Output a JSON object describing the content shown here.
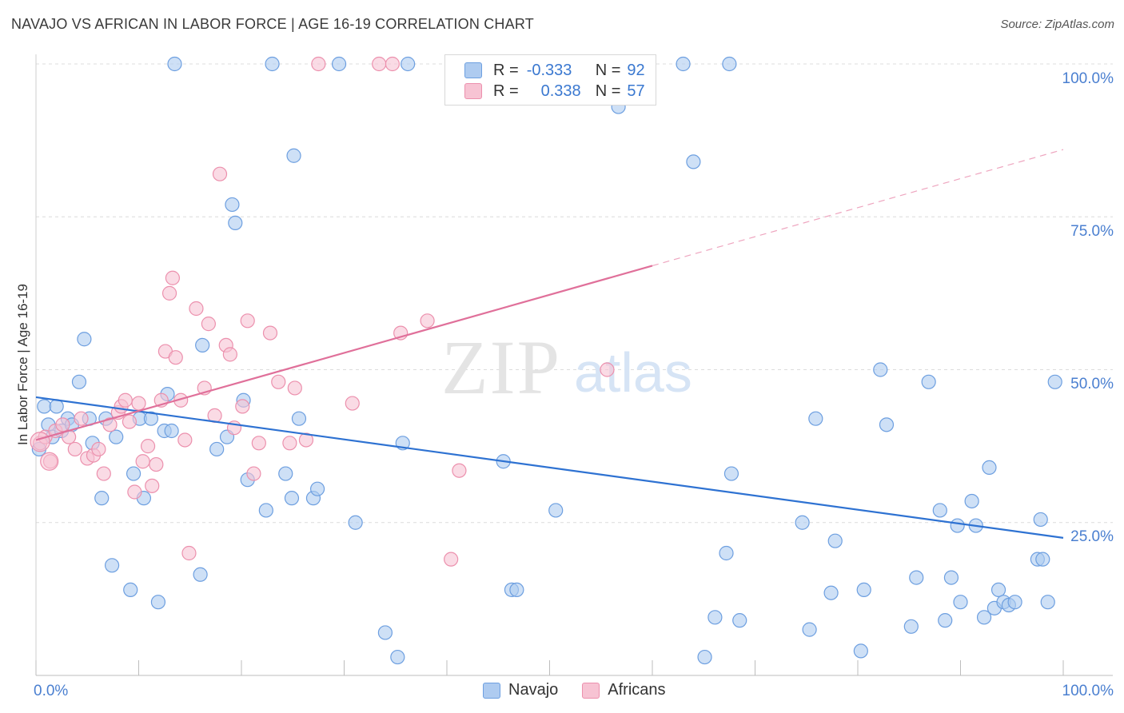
{
  "header": {
    "title": "NAVAJO VS AFRICAN IN LABOR FORCE | AGE 16-19 CORRELATION CHART",
    "source": "Source: ZipAtlas.com"
  },
  "watermark": {
    "zip": "ZIP",
    "atlas": "atlas"
  },
  "legend": {
    "rows": [
      {
        "r_label": "R =",
        "r_value": "-0.333",
        "n_label": "N =",
        "n_value": "92",
        "color": "#aecbf0",
        "stroke": "#6d9fe0"
      },
      {
        "r_label": "R =",
        "r_value": "0.338",
        "n_label": "N =",
        "n_value": "57",
        "color": "#f7c3d3",
        "stroke": "#ec90ad"
      }
    ]
  },
  "bottom_legend": {
    "navajo": "Navajo",
    "africans": "Africans"
  },
  "chart_data": {
    "type": "scatter",
    "title": "NAVAJO VS AFRICAN IN LABOR FORCE | AGE 16-19 CORRELATION CHART",
    "ylabel": "In Labor Force | Age 16-19",
    "xlabel": "",
    "xlim": [
      0,
      100
    ],
    "ylim": [
      0,
      100
    ],
    "x_tick_labels": [
      "0.0%",
      "100.0%"
    ],
    "y_tick_labels": [
      "100.0%",
      "75.0%",
      "50.0%",
      "25.0%"
    ],
    "y_ticks": [
      100,
      75,
      50,
      25
    ],
    "grid": true,
    "legend_position": "top-center",
    "series": [
      {
        "name": "Navajo",
        "color": "#6d9fe0",
        "fill": "#aecbf0",
        "r": -0.333,
        "n": 92,
        "trend": {
          "x0": 0,
          "y0": 45.5,
          "x1": 100,
          "y1": 22.5,
          "style": "solid"
        },
        "points": [
          [
            0.3,
            37
          ],
          [
            0.8,
            44
          ],
          [
            1.2,
            41
          ],
          [
            1.6,
            39
          ],
          [
            2,
            44
          ],
          [
            2.5,
            40
          ],
          [
            3.1,
            42
          ],
          [
            3.5,
            41
          ],
          [
            4.2,
            48
          ],
          [
            4.7,
            55
          ],
          [
            5.2,
            42
          ],
          [
            5.5,
            38
          ],
          [
            6.4,
            29
          ],
          [
            6.8,
            42
          ],
          [
            7.4,
            18
          ],
          [
            7.8,
            39
          ],
          [
            9.2,
            14
          ],
          [
            9.5,
            33
          ],
          [
            10.1,
            42
          ],
          [
            10.5,
            29
          ],
          [
            11.2,
            42
          ],
          [
            11.9,
            12
          ],
          [
            12.5,
            40
          ],
          [
            12.8,
            46
          ],
          [
            13.2,
            40
          ],
          [
            16,
            16.5
          ],
          [
            16.2,
            54
          ],
          [
            17.6,
            37
          ],
          [
            18.6,
            39
          ],
          [
            19.1,
            77
          ],
          [
            19.4,
            74
          ],
          [
            20.2,
            45
          ],
          [
            20.6,
            32
          ],
          [
            22.4,
            27
          ],
          [
            23,
            100
          ],
          [
            24.3,
            33
          ],
          [
            24.9,
            29
          ],
          [
            25.1,
            85
          ],
          [
            25.6,
            42
          ],
          [
            27,
            29
          ],
          [
            27.4,
            30.5
          ],
          [
            29.5,
            100
          ],
          [
            31.1,
            25
          ],
          [
            34,
            7
          ],
          [
            35.2,
            3
          ],
          [
            35.7,
            38
          ],
          [
            36.2,
            100
          ],
          [
            45.5,
            35
          ],
          [
            46.3,
            14
          ],
          [
            46.8,
            14
          ],
          [
            50.6,
            27
          ],
          [
            56.7,
            93
          ],
          [
            63,
            100
          ],
          [
            64,
            84
          ],
          [
            65.1,
            3
          ],
          [
            66.1,
            9.5
          ],
          [
            67.2,
            20
          ],
          [
            67.7,
            33
          ],
          [
            68.5,
            9
          ],
          [
            74.6,
            25
          ],
          [
            75.3,
            7.5
          ],
          [
            75.9,
            42
          ],
          [
            77.4,
            13.5
          ],
          [
            77.8,
            22
          ],
          [
            80.3,
            4
          ],
          [
            80.6,
            14
          ],
          [
            82.2,
            50
          ],
          [
            82.8,
            41
          ],
          [
            85.2,
            8
          ],
          [
            85.7,
            16
          ],
          [
            86.9,
            48
          ],
          [
            88,
            27
          ],
          [
            88.5,
            9
          ],
          [
            89.1,
            16
          ],
          [
            89.7,
            24.5
          ],
          [
            90,
            12
          ],
          [
            91.1,
            28.5
          ],
          [
            91.5,
            24.5
          ],
          [
            92.3,
            9.5
          ],
          [
            92.8,
            34
          ],
          [
            93.3,
            11
          ],
          [
            93.7,
            14
          ],
          [
            94.2,
            12
          ],
          [
            94.7,
            11.5
          ],
          [
            95.3,
            12
          ],
          [
            97.5,
            19
          ],
          [
            97.8,
            25.5
          ],
          [
            98,
            19
          ],
          [
            98.5,
            12
          ],
          [
            99.2,
            48
          ],
          [
            67.5,
            100
          ],
          [
            13.5,
            100
          ]
        ]
      },
      {
        "name": "Africans",
        "color": "#ec90ad",
        "fill": "#f7c3d3",
        "r": 0.338,
        "n": 57,
        "trend": {
          "x0": 0,
          "y0": 38.5,
          "x1": 60,
          "y1": 67,
          "x2": 100,
          "y2": 86,
          "style": "solid-then-dashed"
        },
        "points": [
          [
            0.4,
            38
          ],
          [
            0.9,
            39
          ],
          [
            1.4,
            35
          ],
          [
            1.9,
            40
          ],
          [
            2.6,
            41
          ],
          [
            3.2,
            39
          ],
          [
            3.8,
            37
          ],
          [
            4.4,
            42
          ],
          [
            5,
            35.5
          ],
          [
            5.6,
            36
          ],
          [
            6.1,
            37
          ],
          [
            6.6,
            33
          ],
          [
            7.2,
            41
          ],
          [
            8,
            43
          ],
          [
            8.3,
            44
          ],
          [
            8.7,
            45
          ],
          [
            9.1,
            41.5
          ],
          [
            9.6,
            30
          ],
          [
            10,
            44.5
          ],
          [
            10.4,
            35
          ],
          [
            10.9,
            37.5
          ],
          [
            11.3,
            31
          ],
          [
            11.7,
            34.5
          ],
          [
            12.2,
            45
          ],
          [
            12.6,
            53
          ],
          [
            13,
            62.5
          ],
          [
            13.3,
            65
          ],
          [
            13.6,
            52
          ],
          [
            14.1,
            45
          ],
          [
            14.5,
            38.5
          ],
          [
            14.9,
            20
          ],
          [
            15.6,
            60
          ],
          [
            16.4,
            47
          ],
          [
            16.8,
            57.5
          ],
          [
            17.4,
            42.5
          ],
          [
            17.9,
            82
          ],
          [
            18.5,
            54
          ],
          [
            18.9,
            52.5
          ],
          [
            19.3,
            40.5
          ],
          [
            20.1,
            44
          ],
          [
            20.6,
            58
          ],
          [
            21.2,
            33
          ],
          [
            21.7,
            38
          ],
          [
            22.8,
            56
          ],
          [
            23.6,
            48
          ],
          [
            24.7,
            38
          ],
          [
            25.2,
            47
          ],
          [
            26.3,
            38.5
          ],
          [
            27.5,
            100
          ],
          [
            30.8,
            44.5
          ],
          [
            33.4,
            100
          ],
          [
            34.7,
            100
          ],
          [
            35.5,
            56
          ],
          [
            38.1,
            58
          ],
          [
            40.4,
            19
          ],
          [
            41.2,
            33.5
          ],
          [
            55.6,
            50
          ]
        ]
      }
    ]
  }
}
